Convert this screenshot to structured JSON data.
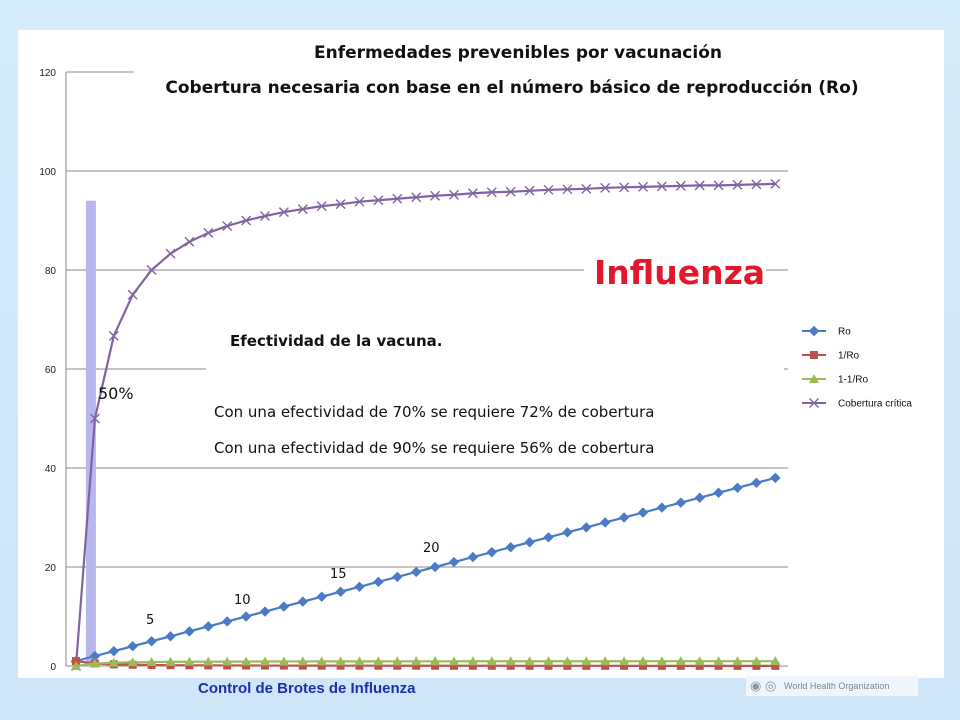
{
  "footer": {
    "text": "Control de Brotes de Influenza"
  },
  "logo": {
    "org": "World Health Organization",
    "icon": "who-emblem-icon"
  },
  "colors": {
    "ro": "#4a7bc4",
    "inv_ro": "#c0504d",
    "one_minus_inv_ro": "#9bbb59",
    "cobertura": "#8064a2",
    "highlight_bar": "#b7b7ec",
    "influenza": "#e0182b"
  },
  "annotations": {
    "influenza": "Influenza",
    "efectividad": "Efectividad de  la vacuna.",
    "line1": "Con una efectividad de 70%  se requiere 72% de cobertura",
    "line2": "Con una efectividad de 90%  se requiere 56% de cobertura",
    "pct50": "50%",
    "p5": "5",
    "p10": "10",
    "p15": "15",
    "p20": "20"
  },
  "chart_data": {
    "type": "line",
    "title": "Enfermedades prevenibles por vacunación",
    "subtitle": "Cobertura necesaria con base en el número básico de reproducción (Ro)",
    "xlabel": "",
    "ylabel": "",
    "ylim": [
      0,
      120
    ],
    "yticks": [
      0,
      20,
      40,
      60,
      80,
      100,
      120
    ],
    "grid": true,
    "legend_position": "right",
    "x": [
      1,
      2,
      3,
      4,
      5,
      6,
      7,
      8,
      9,
      10,
      11,
      12,
      13,
      14,
      15,
      16,
      17,
      18,
      19,
      20,
      21,
      22,
      23,
      24,
      25,
      26,
      27,
      28,
      29,
      30,
      31,
      32,
      33,
      34,
      35,
      36,
      37,
      38
    ],
    "series": [
      {
        "name": "Ro",
        "marker": "diamond",
        "color_key": "ro",
        "values": [
          1,
          2,
          3,
          4,
          5,
          6,
          7,
          8,
          9,
          10,
          11,
          12,
          13,
          14,
          15,
          16,
          17,
          18,
          19,
          20,
          21,
          22,
          23,
          24,
          25,
          26,
          27,
          28,
          29,
          30,
          31,
          32,
          33,
          34,
          35,
          36,
          37,
          38
        ]
      },
      {
        "name": "1/Ro",
        "marker": "square",
        "color_key": "inv_ro",
        "values": [
          1,
          0.5,
          0.333,
          0.25,
          0.2,
          0.167,
          0.143,
          0.125,
          0.111,
          0.1,
          0.091,
          0.083,
          0.077,
          0.071,
          0.067,
          0.063,
          0.059,
          0.056,
          0.053,
          0.05,
          0.048,
          0.045,
          0.043,
          0.042,
          0.04,
          0.038,
          0.037,
          0.036,
          0.034,
          0.033,
          0.032,
          0.031,
          0.03,
          0.029,
          0.029,
          0.028,
          0.027,
          0.026
        ]
      },
      {
        "name": "1-1/Ro",
        "marker": "triangle",
        "color_key": "one_minus_inv_ro",
        "values": [
          0,
          0.5,
          0.667,
          0.75,
          0.8,
          0.833,
          0.857,
          0.875,
          0.889,
          0.9,
          0.909,
          0.917,
          0.923,
          0.929,
          0.933,
          0.938,
          0.941,
          0.944,
          0.947,
          0.95,
          0.952,
          0.955,
          0.957,
          0.958,
          0.96,
          0.962,
          0.963,
          0.964,
          0.966,
          0.967,
          0.968,
          0.969,
          0.97,
          0.971,
          0.971,
          0.972,
          0.973,
          0.974
        ]
      },
      {
        "name": "Cobertura crítica",
        "marker": "x",
        "color_key": "cobertura",
        "values": [
          0,
          50,
          66.7,
          75,
          80,
          83.3,
          85.7,
          87.5,
          88.9,
          90,
          90.9,
          91.7,
          92.3,
          92.9,
          93.3,
          93.8,
          94.1,
          94.4,
          94.7,
          95,
          95.2,
          95.5,
          95.7,
          95.8,
          96,
          96.2,
          96.3,
          96.4,
          96.6,
          96.7,
          96.8,
          96.9,
          97,
          97.1,
          97.1,
          97.2,
          97.3,
          97.4
        ]
      }
    ],
    "highlight_bar": {
      "x": 2,
      "value": 94
    }
  }
}
